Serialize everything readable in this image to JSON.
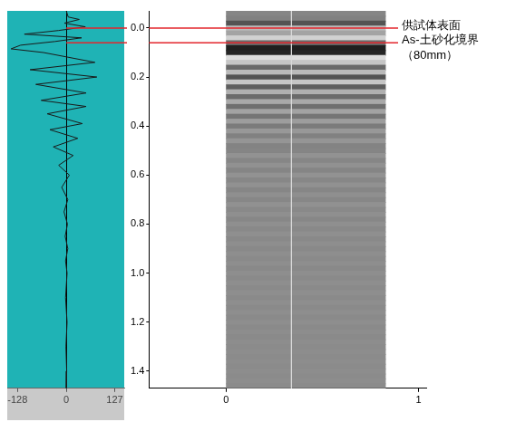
{
  "chart_data": [
    {
      "type": "line",
      "color": "#1a1a1a",
      "xlim": [
        -155,
        152
      ],
      "xticks": [
        -128,
        0,
        127
      ],
      "ylim": [
        -0.07,
        1.47
      ],
      "tick_labels": "x",
      "grid": true,
      "x": [
        0,
        5,
        34,
        -5,
        50,
        -20,
        -110,
        40,
        -30,
        -120,
        -145,
        -60,
        75,
        -95,
        80,
        -80,
        52,
        -66,
        52,
        -50,
        42,
        -43,
        30,
        -34,
        18,
        -20,
        8,
        -12,
        4,
        -6,
        3,
        -3,
        4,
        -2,
        2,
        -2,
        2,
        -1,
        1,
        0
      ],
      "y": [
        -0.07,
        -0.045,
        -0.035,
        -0.02,
        -0.005,
        0.01,
        0.025,
        0.04,
        0.055,
        0.07,
        0.085,
        0.1,
        0.14,
        0.17,
        0.2,
        0.23,
        0.265,
        0.295,
        0.32,
        0.35,
        0.39,
        0.415,
        0.45,
        0.485,
        0.52,
        0.56,
        0.6,
        0.65,
        0.7,
        0.75,
        0.8,
        0.85,
        0.9,
        0.95,
        1.0,
        1.1,
        1.2,
        1.3,
        1.4,
        1.47
      ]
    },
    {
      "type": "radargram",
      "xlim": [
        -0.4,
        1.04
      ],
      "xticks": [
        0,
        1
      ],
      "ylim": [
        -0.07,
        1.47
      ],
      "yticks": [
        {
          "value": 0,
          "label": "0.0"
        },
        0.2,
        0.4,
        0.6,
        0.8,
        {
          "value": 1,
          "label": "1.0"
        },
        1.2,
        1.4
      ],
      "grid": false,
      "radargram": {
        "x_range": [
          0,
          0.83
        ],
        "depths": [
          -0.06,
          -0.04,
          -0.02,
          0,
          0.02,
          0.04,
          0.06,
          0.08,
          0.1,
          0.12,
          0.14,
          0.16,
          0.18,
          0.2,
          0.22,
          0.24,
          0.26,
          0.28,
          0.3,
          0.32,
          0.34,
          0.36,
          0.38,
          0.4,
          0.42,
          0.44,
          0.46,
          0.48,
          0.5,
          0.52,
          0.54,
          0.56,
          0.58,
          0.6,
          0.62,
          0.64,
          0.66,
          0.68,
          0.7,
          0.72,
          0.74,
          0.76,
          0.78,
          0.8,
          0.82,
          0.84,
          0.86,
          0.88,
          0.9,
          0.92,
          0.94,
          0.96,
          0.98,
          1.0,
          1.02,
          1.04,
          1.06,
          1.08,
          1.1,
          1.12,
          1.14,
          1.16,
          1.18,
          1.2,
          1.22,
          1.24,
          1.26,
          1.28,
          1.3,
          1.32,
          1.34,
          1.36,
          1.38,
          1.4,
          1.42,
          1.44,
          1.46
        ],
        "intensity": [
          0.05,
          0.1,
          0.5,
          -0.4,
          -0.2,
          -0.6,
          0.3,
          0.95,
          0.9,
          -0.7,
          -0.5,
          0.3,
          -0.4,
          0.5,
          -0.5,
          0.4,
          -0.3,
          0.3,
          -0.25,
          0.25,
          -0.2,
          0.2,
          -0.15,
          0.15,
          -0.1,
          0.1,
          -0.08,
          0.08,
          0.06,
          -0.05,
          0.05,
          -0.04,
          0.06,
          -0.05,
          0.04,
          -0.04,
          0.05,
          -0.03,
          0.04,
          -0.04,
          0.03,
          -0.03,
          0.04,
          -0.03,
          0.03,
          -0.03,
          0.03,
          -0.02,
          0.03,
          -0.02,
          0.02,
          -0.02,
          0.03,
          -0.02,
          0.02,
          -0.02,
          0.02,
          -0.02,
          0.02,
          -0.02,
          0.02,
          -0.02,
          0.02,
          -0.02,
          0.02,
          -0.01,
          0.02,
          -0.01,
          0.01,
          -0.01,
          0.01,
          -0.01,
          0.01,
          -0.01,
          0.01,
          -0.01,
          0.01
        ]
      },
      "trace_x": 0.34,
      "annotations": [
        {
          "text": [
            "供試体表面"
          ],
          "y": 0
        },
        {
          "text": [
            "As-土砂化境界",
            "（80mm）"
          ],
          "y": 0.06
        }
      ]
    }
  ]
}
